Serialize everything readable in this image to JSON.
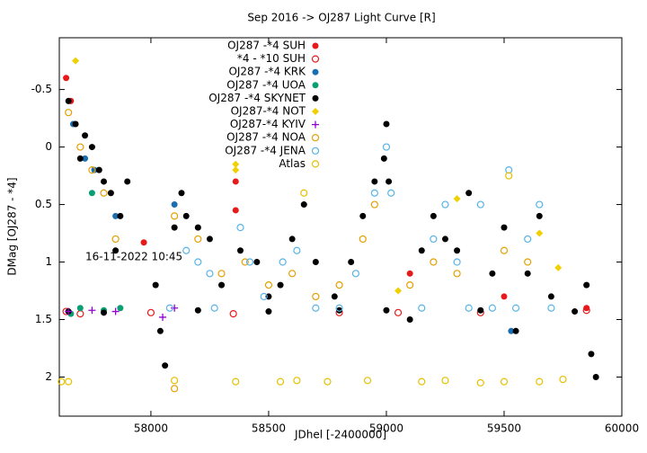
{
  "chart_data": {
    "type": "scatter",
    "title": "Sep 2016 ->   OJ287 Light Curve [R]",
    "x_label": "JDhel [-2400000]",
    "y_label": "DMag [OJ287 - *4]",
    "annotation": "16-11-2022  10:45",
    "xlim": [
      57611,
      60000
    ],
    "xticks": [
      58000,
      58500,
      59000,
      59500,
      60000
    ],
    "ylim": [
      2.34,
      -0.95
    ],
    "yticks": [
      -0.5,
      0,
      0.5,
      1,
      1.5,
      2
    ],
    "legend": "top-left",
    "series": [
      {
        "name": "OJ287 -*4 SUH",
        "color": "#e8191b",
        "marker": "circle",
        "x": [
          57640,
          57660,
          57970,
          58360,
          58360,
          59100,
          59500,
          59850
        ],
        "values": [
          -0.6,
          -0.4,
          0.83,
          0.55,
          0.3,
          1.1,
          1.3,
          1.4
        ]
      },
      {
        "name": "*4 - *10 SUH",
        "color": "#e8191b",
        "marker": "open-circle",
        "x": [
          57640,
          57700,
          58000,
          58350,
          58800,
          59050,
          59400,
          59850
        ],
        "values": [
          1.43,
          1.45,
          1.44,
          1.45,
          1.44,
          1.44,
          1.44,
          1.42
        ]
      },
      {
        "name": "OJ287 -*4 KRK",
        "color": "#1a6fb0",
        "marker": "circle",
        "x": [
          57670,
          57720,
          57760,
          57850,
          58100,
          59530
        ],
        "values": [
          -0.2,
          0.1,
          0.2,
          0.6,
          0.5,
          1.6
        ]
      },
      {
        "name": "OJ287 -*4 UOA",
        "color": "#0a9e73",
        "marker": "circle",
        "x": [
          57660,
          57700,
          57750,
          57800,
          57870
        ],
        "values": [
          1.45,
          1.4,
          0.4,
          1.42,
          1.4
        ]
      },
      {
        "name": "OJ287 -*4 SKYNET",
        "color": "#000000",
        "marker": "circle",
        "x": [
          57650,
          57680,
          57700,
          57720,
          57750,
          57780,
          57800,
          57830,
          57850,
          57870,
          57900,
          58020,
          58040,
          58060,
          58100,
          58130,
          58150,
          58200,
          58250,
          58300,
          58380,
          58450,
          58500,
          58550,
          58600,
          58650,
          58700,
          58780,
          58850,
          58900,
          58950,
          58990,
          59000,
          59010,
          59100,
          59150,
          59200,
          59250,
          59300,
          59350,
          59450,
          59500,
          59550,
          59600,
          59650,
          59700,
          59850,
          59870,
          59890,
          57650,
          57800,
          58200,
          58500,
          58800,
          59000,
          59400,
          59800
        ],
        "values": [
          -0.4,
          -0.2,
          0.1,
          -0.1,
          0.0,
          0.2,
          0.3,
          0.4,
          0.9,
          0.6,
          0.3,
          1.2,
          1.6,
          1.9,
          0.7,
          0.4,
          0.6,
          0.7,
          0.8,
          1.2,
          0.9,
          1.0,
          1.3,
          1.2,
          0.8,
          0.5,
          1.0,
          1.3,
          1.0,
          0.6,
          0.3,
          0.1,
          -0.2,
          0.3,
          1.5,
          0.9,
          0.6,
          0.8,
          0.9,
          0.4,
          1.1,
          0.7,
          1.6,
          1.1,
          0.6,
          1.3,
          1.2,
          1.8,
          2.0,
          1.43,
          1.44,
          1.42,
          1.43,
          1.42,
          1.42,
          1.42,
          1.43
        ]
      },
      {
        "name": "OJ287-*4 NOT",
        "color": "#f0d000",
        "marker": "diamond",
        "x": [
          57680,
          58360,
          58360,
          59050,
          59300,
          59650,
          59730
        ],
        "values": [
          -0.75,
          0.15,
          0.2,
          1.25,
          0.45,
          0.75,
          1.05
        ]
      },
      {
        "name": "OJ287-*4 KYIV",
        "color": "#9400d3",
        "marker": "plus",
        "x": [
          57650,
          57750,
          57850,
          58050,
          58100
        ],
        "values": [
          1.43,
          1.42,
          1.43,
          1.48,
          1.4
        ]
      },
      {
        "name": "OJ287 -*4 NOA",
        "color": "#e69f00",
        "marker": "open-circle",
        "x": [
          57650,
          57700,
          57750,
          57800,
          57850,
          58100,
          58200,
          58300,
          58400,
          58500,
          58600,
          58700,
          58800,
          58900,
          58950,
          59100,
          59200,
          59300,
          59500,
          59600,
          58100
        ],
        "values": [
          -0.3,
          0.0,
          0.2,
          0.4,
          0.8,
          0.6,
          0.8,
          1.1,
          1.0,
          1.2,
          1.1,
          1.3,
          1.2,
          0.8,
          0.5,
          1.2,
          1.0,
          1.1,
          0.9,
          1.0,
          2.1
        ]
      },
      {
        "name": "OJ287 -*4 JENA",
        "color": "#56b4e9",
        "marker": "open-circle",
        "x": [
          58080,
          58150,
          58200,
          58250,
          58270,
          58380,
          58420,
          58480,
          58560,
          58620,
          58700,
          58800,
          58870,
          58950,
          59000,
          59020,
          59150,
          59200,
          59250,
          59300,
          59350,
          59400,
          59450,
          59520,
          59550,
          59600,
          59650,
          59700
        ],
        "values": [
          1.4,
          0.9,
          1.0,
          1.1,
          1.4,
          0.7,
          1.0,
          1.3,
          1.0,
          0.9,
          1.4,
          1.4,
          1.1,
          0.4,
          0.0,
          0.4,
          1.4,
          0.8,
          0.5,
          1.0,
          1.4,
          0.5,
          1.4,
          0.2,
          1.4,
          0.8,
          0.5,
          1.4
        ]
      },
      {
        "name": "Atlas",
        "color": "#e6c000",
        "marker": "open-circle",
        "x": [
          57620,
          57650,
          58100,
          58360,
          58550,
          58620,
          58650,
          58750,
          58920,
          59150,
          59250,
          59400,
          59500,
          59520,
          59650,
          59750
        ],
        "values": [
          2.04,
          2.04,
          2.03,
          2.04,
          2.04,
          2.03,
          0.4,
          2.04,
          2.03,
          2.04,
          2.03,
          2.05,
          2.04,
          0.25,
          2.04,
          2.02
        ]
      }
    ]
  }
}
